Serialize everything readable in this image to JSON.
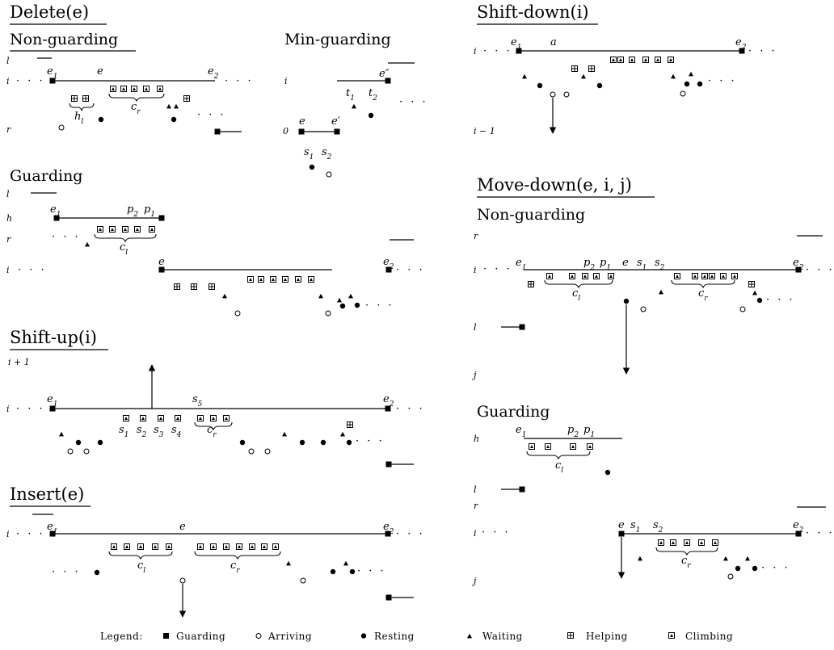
{
  "titles": {
    "delete": "Delete(e)",
    "delete_non_guarding": "Non-guarding",
    "delete_min_guarding": "Min-guarding",
    "delete_guarding": "Guarding",
    "shift_up": "Shift-up(i)",
    "insert": "Insert(e)",
    "shift_down": "Shift-down(i)",
    "move_down": "Move-down(e, i, j)",
    "move_down_non_guarding": "Non-guarding",
    "move_down_guarding": "Guarding"
  },
  "levels": {
    "l": "l",
    "i": "i",
    "r": "r",
    "zero": "0",
    "h": "h",
    "j": "j",
    "i_plus_1": "i + 1",
    "i_minus_1": "i − 1"
  },
  "labels": {
    "e": "e",
    "e1": "e",
    "e2": "e",
    "e_prime": "e′",
    "e_dprime": "e″",
    "a": "a",
    "t1": "t",
    "t2": "t",
    "s1": "s",
    "s2": "s",
    "s3": "s",
    "s4": "s",
    "s5": "s",
    "p1": "p",
    "p2": "p",
    "c_r": "c",
    "c_l": "c",
    "h_l": "h",
    "sub_1": "1",
    "sub_2": "2",
    "sub_3": "3",
    "sub_4": "4",
    "sub_5": "5",
    "sub_r": "r",
    "sub_l": "l"
  },
  "ellipsis": "· · ·",
  "legend": {
    "title": "Legend:",
    "items": [
      {
        "icon": "guarding-icon",
        "label": "Guarding"
      },
      {
        "icon": "arriving-icon",
        "label": "Arriving"
      },
      {
        "icon": "resting-icon",
        "label": "Resting"
      },
      {
        "icon": "waiting-icon",
        "label": "Waiting"
      },
      {
        "icon": "helping-icon",
        "label": "Helping"
      },
      {
        "icon": "climbing-icon",
        "label": "Climbing"
      }
    ]
  }
}
